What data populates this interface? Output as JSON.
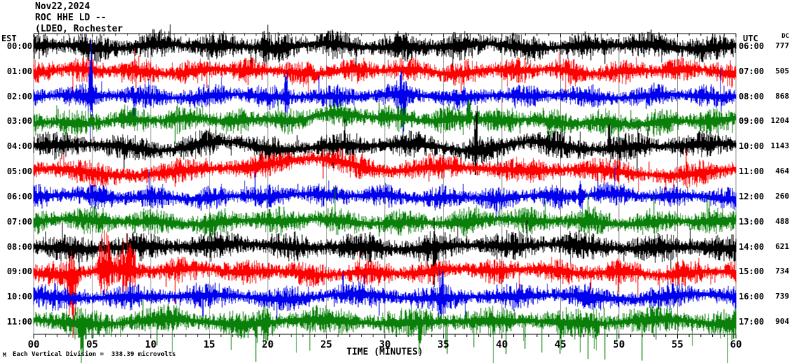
{
  "header": {
    "date": "Nov22,2024",
    "station": "ROC HHE LD --",
    "location": "(LDEO, Rochester"
  },
  "axes": {
    "left_tz": "EST",
    "right_tz": "UTC",
    "dc_header": "DC",
    "xlabel": "TIME (MINUTES)"
  },
  "footer": {
    "scale_text": "Each Vertical Division =  338.39 microvolts",
    "corner_mark": "M"
  },
  "chart_data": {
    "type": "line",
    "subtype": "helicorder-seismogram",
    "title": "ROC HHE LD -- (LDEO, Rochester  Nov22,2024",
    "xlabel": "TIME (MINUTES)",
    "x_range_minutes": [
      0,
      60
    ],
    "x_major_tick_labels": [
      "00",
      "05",
      "10",
      "15",
      "20",
      "25",
      "30",
      "35",
      "40",
      "45",
      "50",
      "55",
      "60"
    ],
    "x_minor_tick_minutes": 1,
    "grid": "vertical-5min-gray",
    "scale_microvolts_per_division": 338.39,
    "left_axis_label": "EST",
    "right_axis_label": "UTC",
    "dc_column_label": "DC",
    "colors": {
      "black": "#000000",
      "red": "#ff0000",
      "blue": "#0000ee",
      "green": "#0a800a",
      "grid": "#8c8c8c",
      "axis": "#000000"
    },
    "rows": [
      {
        "est": "00:00",
        "utc": "06:00",
        "dc": "777",
        "color": "#000000",
        "amp": 16,
        "drift": 4,
        "seed": 11,
        "spikes": [
          {
            "pos": 0.33,
            "w": 0.004,
            "up": 1.6,
            "dn": 1.0
          }
        ]
      },
      {
        "est": "01:00",
        "utc": "07:00",
        "dc": "505",
        "color": "#ff0000",
        "amp": 14,
        "drift": 4,
        "seed": 22,
        "spikes": []
      },
      {
        "est": "02:00",
        "utc": "08:00",
        "dc": "868",
        "color": "#0000ee",
        "amp": 13,
        "drift": 3,
        "seed": 33,
        "spikes": [
          {
            "pos": 0.082,
            "w": 0.003,
            "up": 3.5,
            "dn": 5.0
          },
          {
            "pos": 0.36,
            "w": 0.003,
            "up": 2.5,
            "dn": 3.0
          },
          {
            "pos": 0.525,
            "w": 0.004,
            "up": 1.5,
            "dn": 3.5
          }
        ]
      },
      {
        "est": "03:00",
        "utc": "09:00",
        "dc": "1204",
        "color": "#0a800a",
        "amp": 15,
        "drift": 5,
        "seed": 44,
        "humps": [
          {
            "pos": 0.44,
            "amp": 13,
            "w": 0.07
          }
        ],
        "spikes": [
          {
            "pos": 0.62,
            "w": 0.003,
            "up": 2.2,
            "dn": 1.0
          }
        ]
      },
      {
        "est": "04:00",
        "utc": "10:00",
        "dc": "1143",
        "color": "#000000",
        "amp": 15,
        "drift": 7,
        "seed": 55,
        "spikes": [
          {
            "pos": 0.63,
            "w": 0.003,
            "up": 3.0,
            "dn": 1.5
          },
          {
            "pos": 0.82,
            "w": 0.002,
            "up": 2.0,
            "dn": 1.0
          }
        ]
      },
      {
        "est": "05:00",
        "utc": "11:00",
        "dc": "464",
        "color": "#ff0000",
        "amp": 14,
        "drift": 6,
        "seed": 66,
        "humps": [
          {
            "pos": 0.4,
            "amp": 15,
            "w": 0.09
          },
          {
            "pos": 0.56,
            "amp": 8,
            "w": 0.05
          }
        ],
        "spikes": []
      },
      {
        "est": "06:00",
        "utc": "12:00",
        "dc": "260",
        "color": "#0000ee",
        "amp": 13,
        "drift": 4,
        "seed": 77,
        "spikes": [
          {
            "pos": 0.78,
            "w": 0.003,
            "up": 2.5,
            "dn": 2.5
          },
          {
            "pos": 0.3,
            "w": 0.002,
            "up": 2.0,
            "dn": 1.0
          }
        ]
      },
      {
        "est": "07:00",
        "utc": "13:00",
        "dc": "488",
        "color": "#0a800a",
        "amp": 15,
        "drift": 4,
        "seed": 88,
        "spikes": []
      },
      {
        "est": "08:00",
        "utc": "14:00",
        "dc": "621",
        "color": "#000000",
        "amp": 16,
        "drift": 4,
        "seed": 99,
        "spikes": [
          {
            "pos": 0.57,
            "w": 0.002,
            "up": 1.5,
            "dn": 2.0
          }
        ]
      },
      {
        "est": "09:00",
        "utc": "15:00",
        "dc": "734",
        "color": "#ff0000",
        "amp": 14,
        "drift": 5,
        "seed": 110,
        "tailProb": 0.012,
        "tailLen": 40,
        "spikes": [
          {
            "pos": 0.055,
            "w": 0.006,
            "up": 1.5,
            "dn": 7.0
          },
          {
            "pos": 0.1,
            "w": 0.008,
            "up": 4.0,
            "dn": 2.0
          },
          {
            "pos": 0.135,
            "w": 0.01,
            "up": 2.0,
            "dn": 1.5
          }
        ]
      },
      {
        "est": "10:00",
        "utc": "16:00",
        "dc": "739",
        "color": "#0000ee",
        "amp": 14,
        "drift": 4,
        "seed": 121,
        "spikes": [
          {
            "pos": 0.58,
            "w": 0.004,
            "up": 1.5,
            "dn": 2.0
          }
        ]
      },
      {
        "est": "11:00",
        "utc": "17:00",
        "dc": "904",
        "color": "#0a800a",
        "amp": 16,
        "drift": 4,
        "seed": 132,
        "tailProb": 0.03,
        "tailLen": 50,
        "spikes": [
          {
            "pos": 0.07,
            "w": 0.004,
            "up": 1.0,
            "dn": 3.0
          },
          {
            "pos": 0.33,
            "w": 0.003,
            "up": 1.0,
            "dn": 2.5
          },
          {
            "pos": 0.55,
            "w": 0.002,
            "up": 1.0,
            "dn": 2.0
          },
          {
            "pos": 0.8,
            "w": 0.003,
            "up": 1.0,
            "dn": 2.5
          }
        ]
      }
    ]
  }
}
